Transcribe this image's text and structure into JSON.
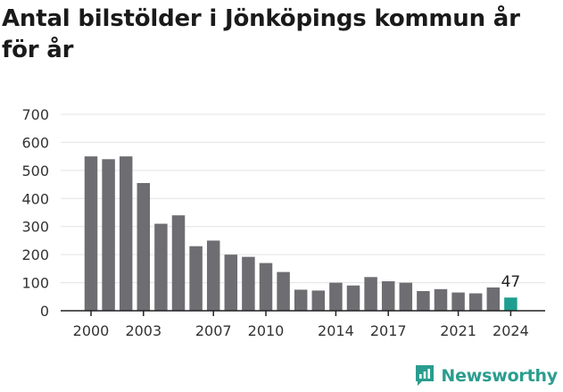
{
  "title": "Antal bilstölder i Jönköpings kommun år för år",
  "brand": {
    "name": "Newsworthy",
    "logo_icon": "speech-bubble-bar-chart-icon",
    "color": "#2a9d8f"
  },
  "chart_data": {
    "type": "bar",
    "title": "Antal bilstölder i Jönköpings kommun år för år",
    "xlabel": "",
    "ylabel": "",
    "categories": [
      "2000",
      "2001",
      "2002",
      "2003",
      "2004",
      "2005",
      "2006",
      "2007",
      "2008",
      "2009",
      "2010",
      "2011",
      "2012",
      "2013",
      "2014",
      "2015",
      "2016",
      "2017",
      "2018",
      "2019",
      "2020",
      "2021",
      "2022",
      "2023",
      "2024"
    ],
    "values": [
      550,
      540,
      550,
      455,
      310,
      340,
      230,
      250,
      200,
      192,
      170,
      138,
      75,
      72,
      100,
      90,
      120,
      105,
      100,
      70,
      77,
      65,
      62,
      83,
      47
    ],
    "x_tick_labels": [
      "2000",
      "2003",
      "2007",
      "2010",
      "2014",
      "2017",
      "2021",
      "2024"
    ],
    "y_ticks": [
      0,
      100,
      200,
      300,
      400,
      500,
      600,
      700
    ],
    "ylim": [
      0,
      700
    ],
    "grid": true,
    "legend": "none",
    "bar_color": "#6e6d72",
    "highlight_color": "#1f9e8f",
    "highlight_category": "2024",
    "data_labels": [
      {
        "category": "2024",
        "text": "47"
      }
    ]
  }
}
